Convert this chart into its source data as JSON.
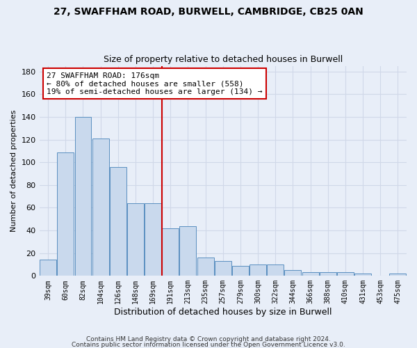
{
  "title1": "27, SWAFFHAM ROAD, BURWELL, CAMBRIDGE, CB25 0AN",
  "title2": "Size of property relative to detached houses in Burwell",
  "xlabel": "Distribution of detached houses by size in Burwell",
  "ylabel": "Number of detached properties",
  "categories": [
    "39sqm",
    "60sqm",
    "82sqm",
    "104sqm",
    "126sqm",
    "148sqm",
    "169sqm",
    "191sqm",
    "213sqm",
    "235sqm",
    "257sqm",
    "279sqm",
    "300sqm",
    "322sqm",
    "344sqm",
    "366sqm",
    "388sqm",
    "410sqm",
    "431sqm",
    "453sqm",
    "475sqm"
  ],
  "values": [
    14,
    109,
    140,
    121,
    96,
    64,
    64,
    42,
    44,
    16,
    13,
    9,
    10,
    10,
    5,
    3,
    3,
    3,
    2,
    0,
    2
  ],
  "bar_color": "#c9d9ed",
  "bar_edge_color": "#5a8fc0",
  "vline_color": "#cc0000",
  "annotation_line1": "27 SWAFFHAM ROAD: 176sqm",
  "annotation_line2": "← 80% of detached houses are smaller (558)",
  "annotation_line3": "19% of semi-detached houses are larger (134) →",
  "annotation_box_color": "#ffffff",
  "annotation_box_edge_color": "#cc0000",
  "ylim": [
    0,
    185
  ],
  "yticks": [
    0,
    20,
    40,
    60,
    80,
    100,
    120,
    140,
    160,
    180
  ],
  "grid_color": "#d0d8e8",
  "bg_color": "#e8eef8",
  "footer1": "Contains HM Land Registry data © Crown copyright and database right 2024.",
  "footer2": "Contains public sector information licensed under the Open Government Licence v3.0."
}
